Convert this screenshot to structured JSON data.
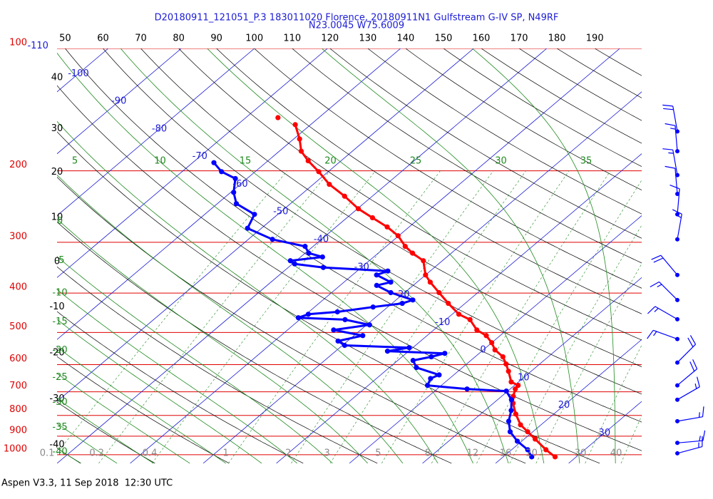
{
  "title": "D20180911_121051_P.3 183011020 Florence, 20180911N1 Gulfstream G-IV SP, N49RF",
  "subtitle": "N23.0045 W75.6009",
  "footer": "Aspen V3.3, 11 Sep 2018  12:30 UTC",
  "chart_data": {
    "type": "skewt",
    "ylim": [
      1050,
      100
    ],
    "log_y": true,
    "xlim": [
      -40,
      40
    ],
    "pressure_ticks": [
      100,
      200,
      300,
      400,
      500,
      600,
      700,
      800,
      900,
      1000
    ],
    "pressure_color": "#e00000",
    "isotherm_ticks": [
      -110,
      -100,
      -90,
      -80,
      -70,
      -60,
      -50,
      -40,
      -30,
      -20,
      -10,
      0,
      10,
      20,
      30
    ],
    "isotherm_color": "#1c1cd6",
    "dry_adiabat_top_ticks": [
      50,
      60,
      70,
      80,
      90,
      100,
      110,
      120,
      130,
      140,
      150,
      160,
      170,
      180,
      190
    ],
    "dry_adiabat_left_ticks": [
      40,
      30,
      20,
      10,
      0,
      -10,
      -20,
      -30,
      -40
    ],
    "dry_adiabat_color": "#000000",
    "moist_adiabat_top_ticks": [
      5,
      10,
      15,
      20,
      25,
      30,
      35
    ],
    "moist_adiabat_left_ticks": [
      0,
      -5,
      -10,
      -15,
      -20,
      -25,
      -30,
      -35,
      -40
    ],
    "moist_adiabat_color": "#1e8a1e",
    "mixing_ratio_ticks": [
      0.1,
      0.2,
      0.4,
      1,
      2,
      3,
      5,
      8,
      12,
      16,
      20,
      30,
      40
    ],
    "mixing_ratio_color": "#8a8a8a",
    "temperature": {
      "color": "#ff0000",
      "pressure": [
        1012,
        972,
        915,
        878,
        844,
        794,
        747,
        718,
        689,
        675,
        662,
        623,
        598,
        574,
        552,
        530,
        509,
        493,
        465,
        451,
        424,
        399,
        376,
        361,
        333,
        319,
        307,
        289,
        275,
        261,
        248,
        231,
        216,
        201,
        189,
        179,
        167,
        154,
        null,
        148
      ],
      "values": [
        27.1,
        24.7,
        21.5,
        19.3,
        17.2,
        14.8,
        12.7,
        11.6,
        10.7,
        10.5,
        9,
        6.9,
        5.4,
        3.8,
        1.6,
        0,
        -1.9,
        -4.1,
        -6.7,
        -9.1,
        -12.3,
        -15.3,
        -18.2,
        -20,
        -22.6,
        -25.3,
        -27.4,
        -30.1,
        -33,
        -36.5,
        -39.9,
        -43.8,
        -47.8,
        -51.3,
        -54.5,
        -57,
        -59.2,
        -62.1,
        null,
        -65.6
      ]
    },
    "dewpoint": {
      "color": "#0000ff",
      "pressure": [
        1012,
        972,
        926,
        878,
        827,
        778,
        732,
        697,
        689,
        675,
        649,
        636,
        610,
        586,
        574,
        563,
        556,
        545,
        538,
        525,
        509,
        493,
        479,
        465,
        460,
        451,
        445,
        433,
        424,
        416,
        399,
        383,
        376,
        361,
        353,
        346,
        339,
        333,
        326,
        319,
        307,
        295,
        277,
        256,
        241,
        226,
        209,
        201,
        191
      ],
      "values": [
        23.9,
        22.2,
        19.4,
        16.9,
        15,
        13.6,
        11.9,
        9.8,
        4.1,
        -1.9,
        -2.6,
        -2,
        -6.3,
        -7.9,
        -6,
        -4.7,
        -12.9,
        -10.5,
        -19.7,
        -21.3,
        -18.8,
        -23.7,
        -19.6,
        -23.8,
        -30.5,
        -29.7,
        -26.1,
        -22,
        -18.6,
        -17.7,
        -21.9,
        -25,
        -23.6,
        -26.7,
        -25.8,
        -35.2,
        -39.7,
        -40.8,
        -37,
        -39.5,
        -41.1,
        -46.7,
        -51.9,
        -53.2,
        -57.4,
        -59.6,
        -61.6,
        -64.6,
        -67.1
      ]
    },
    "wind": {
      "color": "#0000ff",
      "pressure": [
        160,
        179,
        205,
        228,
        256,
        295,
        361,
        416,
        464,
        519,
        593,
        675,
        732,
        827,
        935,
        992
      ],
      "direction": [
        350,
        355,
        350,
        355,
        5,
        10,
        320,
        315,
        300,
        290,
        45,
        50,
        60,
        80,
        85,
        75
      ],
      "speed": [
        20,
        15,
        15,
        10,
        10,
        15,
        20,
        15,
        15,
        15,
        20,
        20,
        15,
        15,
        15,
        15
      ]
    }
  }
}
